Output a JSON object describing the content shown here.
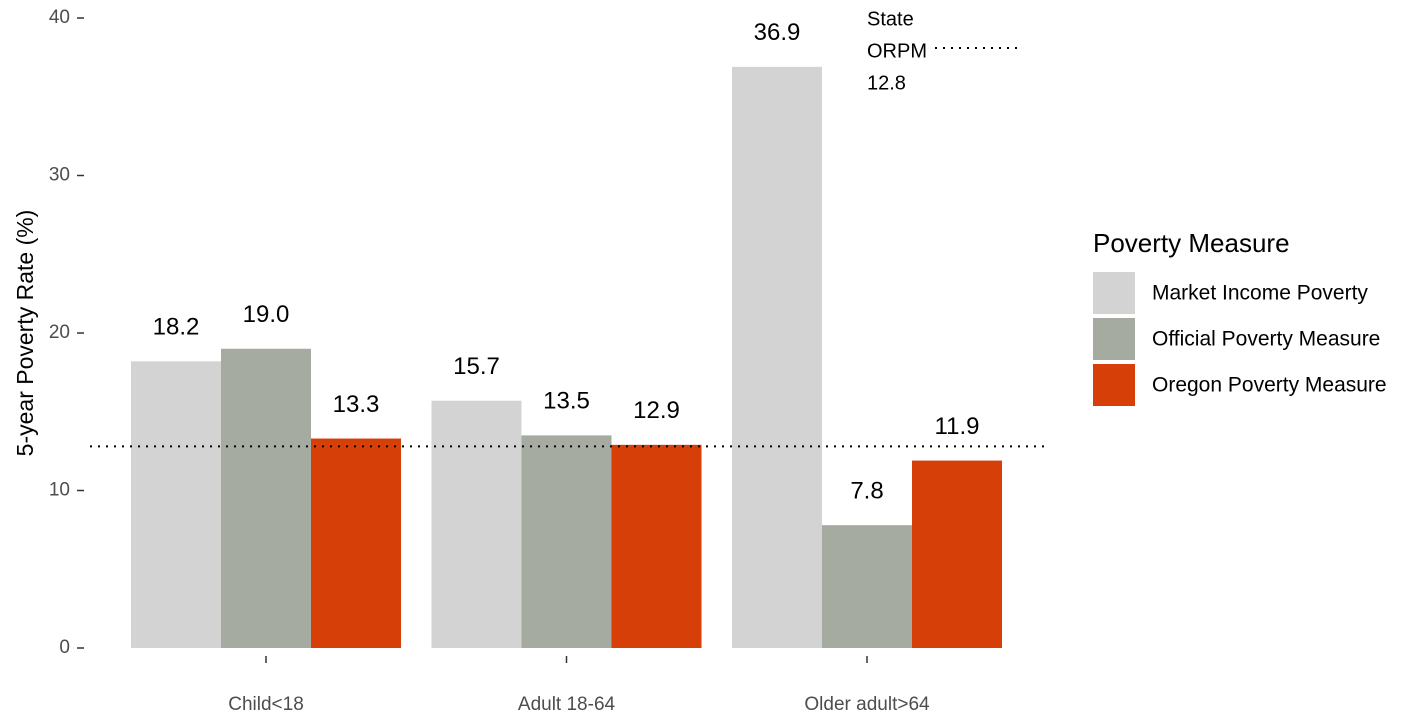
{
  "chart_data": {
    "type": "bar",
    "y_label": "5-year Poverty Rate (%)",
    "categories": [
      "Child<18",
      "Adult 18-64",
      "Older adult>64"
    ],
    "series": [
      {
        "name": "Market Income Poverty",
        "color": "#d3d3d3",
        "values": [
          18.2,
          15.7,
          36.9
        ],
        "value_labels": [
          "18.2",
          "15.7",
          "36.9"
        ]
      },
      {
        "name": "Official Poverty Measure",
        "color": "#a6aba2",
        "values": [
          19,
          13.5,
          7.8
        ],
        "value_labels": [
          "19.0",
          "13.5",
          "7.8"
        ]
      },
      {
        "name": "Oregon Poverty Measure",
        "color": "#d73f09",
        "values": [
          13.3,
          12.9,
          11.9
        ],
        "value_labels": [
          "13.3",
          "12.9",
          "11.9"
        ]
      }
    ],
    "legend_title": "Poverty Measure",
    "legend_position": "right",
    "reference_line": 12.8,
    "annotation": [
      "State",
      "ORPM",
      "12.8"
    ],
    "ylim": [
      0,
      40
    ],
    "yticks": [
      0,
      10,
      20,
      30,
      40
    ],
    "grid": false
  }
}
